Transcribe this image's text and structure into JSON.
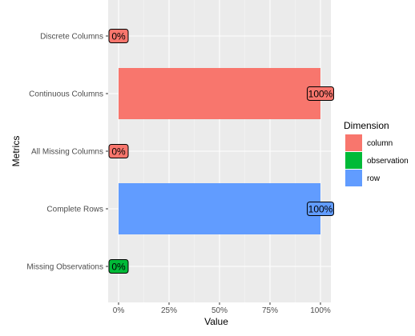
{
  "chart_data": {
    "type": "bar",
    "orientation": "horizontal",
    "categories": [
      "Discrete Columns",
      "Continuous Columns",
      "All Missing Columns",
      "Complete Rows",
      "Missing Observations"
    ],
    "values": [
      0,
      1,
      0,
      1,
      0
    ],
    "data_labels": [
      "0%",
      "100%",
      "0%",
      "100%",
      "0%"
    ],
    "dimension": [
      "column",
      "column",
      "column",
      "row",
      "observation"
    ],
    "xlabel": "Value",
    "ylabel": "Metrics",
    "xlim": [
      0,
      1
    ],
    "x_ticks": [
      0,
      0.25,
      0.5,
      0.75,
      1
    ],
    "x_tick_labels": [
      "0%",
      "25%",
      "50%",
      "75%",
      "100%"
    ],
    "grid": true,
    "legend": {
      "title": "Dimension",
      "position": "right",
      "entries": [
        {
          "name": "column",
          "color": "#F8766D"
        },
        {
          "name": "observation",
          "color": "#00BA38"
        },
        {
          "name": "row",
          "color": "#619CFF"
        }
      ]
    },
    "colors": {
      "panel_background": "#EBEBEB",
      "grid_major": "#FFFFFF",
      "grid_minor": "#F5F5F5",
      "axis_text": "#4D4D4D",
      "title_text": "#000000"
    }
  }
}
